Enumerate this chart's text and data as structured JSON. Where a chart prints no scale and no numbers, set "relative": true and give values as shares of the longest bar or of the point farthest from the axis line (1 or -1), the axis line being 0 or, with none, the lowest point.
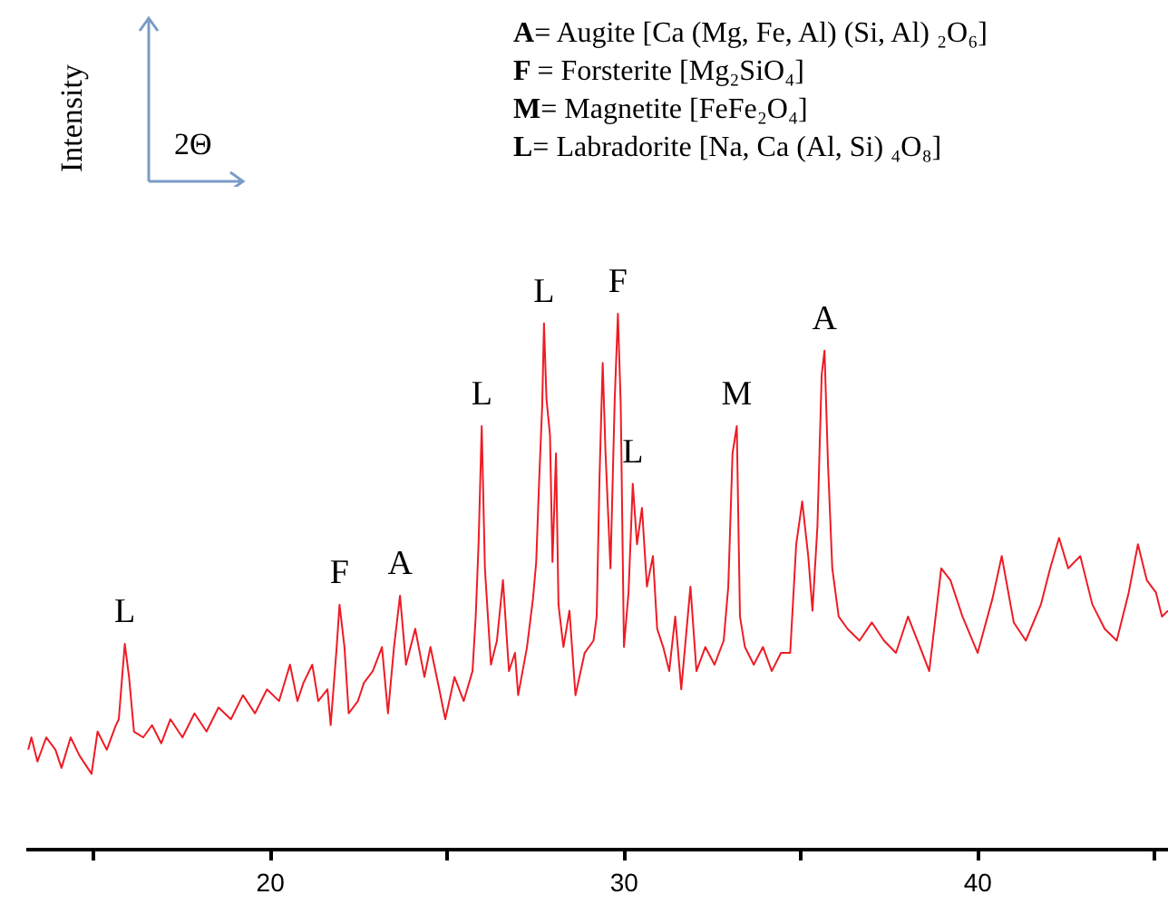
{
  "chart_data": {
    "type": "line",
    "relative": true,
    "xlabel": "2Θ",
    "ylabel": "Intensity",
    "annotations": [
      "A= Augite [Ca (Mg, Fe, Al) (Si, Al) ₂O₆]",
      "F = Forsterite [Mg₂SiO₄]",
      "M= Magnetite [FeFe₂O₄]",
      "L= Labradorite [Na, Ca (Al, Si) ₄O₈]",
      {
        "text": "L",
        "x": 15.91,
        "y": 0.383
      },
      {
        "text": "F",
        "x": 21.98,
        "y": 0.456
      },
      {
        "text": "A",
        "x": 23.69,
        "y": 0.473
      },
      {
        "text": "L",
        "x": 26.0,
        "y": 0.79
      },
      {
        "text": "L",
        "x": 27.76,
        "y": 0.982
      },
      {
        "text": "F",
        "x": 29.85,
        "y": 1
      },
      {
        "text": "L",
        "x": 30.27,
        "y": 0.682
      },
      {
        "text": "M",
        "x": 33.21,
        "y": 0.79
      },
      {
        "text": "A",
        "x": 35.69,
        "y": 0.931
      }
    ],
    "xlim": [
      13.1,
      45.4
    ],
    "xticks": [
      {
        "value": 15,
        "label": null
      },
      20,
      {
        "value": 25,
        "label": null
      },
      30,
      {
        "value": 35,
        "label": null
      },
      40,
      {
        "value": 45,
        "label": null
      }
    ],
    "x": [
      13.18,
      13.27,
      13.44,
      13.69,
      13.95,
      14.12,
      14.38,
      14.63,
      14.97,
      15.14,
      15.4,
      15.66,
      15.74,
      15.91,
      16.03,
      16.17,
      16.43,
      16.68,
      16.94,
      17.2,
      17.54,
      17.88,
      18.22,
      18.56,
      18.91,
      19.25,
      19.59,
      19.93,
      20.27,
      20.58,
      20.79,
      20.96,
      21.21,
      21.38,
      21.64,
      21.73,
      21.9,
      21.98,
      22.12,
      22.24,
      22.5,
      22.67,
      22.92,
      23.18,
      23.35,
      23.52,
      23.69,
      23.86,
      24.12,
      24.38,
      24.55,
      24.8,
      24.97,
      25.23,
      25.49,
      25.74,
      25.83,
      25.91,
      26.0,
      26.09,
      26.26,
      26.43,
      26.6,
      26.77,
      26.94,
      27.03,
      27.28,
      27.45,
      27.54,
      27.62,
      27.71,
      27.76,
      27.83,
      27.93,
      28.0,
      28.1,
      28.17,
      28.31,
      28.48,
      28.65,
      28.91,
      29.16,
      29.25,
      29.33,
      29.42,
      29.5,
      29.64,
      29.76,
      29.85,
      29.93,
      30.02,
      30.15,
      30.27,
      30.39,
      30.53,
      30.67,
      30.84,
      30.96,
      31.13,
      31.3,
      31.47,
      31.64,
      31.9,
      32.07,
      32.32,
      32.58,
      32.84,
      32.97,
      33.09,
      33.21,
      33.3,
      33.44,
      33.69,
      33.95,
      34.2,
      34.46,
      34.72,
      34.89,
      35.06,
      35.23,
      35.35,
      35.49,
      35.61,
      35.69,
      35.79,
      35.91,
      36.09,
      36.34,
      36.68,
      37.03,
      37.37,
      37.71,
      38.05,
      38.39,
      38.65,
      38.99,
      39.25,
      39.59,
      40.02,
      40.44,
      40.7,
      41.04,
      41.38,
      41.81,
      42.07,
      42.32,
      42.58,
      42.92,
      43.26,
      43.61,
      43.95,
      44.29,
      44.55,
      44.8,
      45.06,
      45.23,
      45.4
    ],
    "series": [
      {
        "color": "#ee1c25",
        "values": [
          0.185,
          0.208,
          0.163,
          0.208,
          0.185,
          0.151,
          0.208,
          0.174,
          0.14,
          0.219,
          0.185,
          0.231,
          0.242,
          0.383,
          0.321,
          0.219,
          0.208,
          0.231,
          0.197,
          0.242,
          0.208,
          0.253,
          0.219,
          0.264,
          0.242,
          0.287,
          0.253,
          0.298,
          0.276,
          0.344,
          0.276,
          0.31,
          0.344,
          0.276,
          0.298,
          0.231,
          0.377,
          0.456,
          0.377,
          0.253,
          0.276,
          0.31,
          0.332,
          0.377,
          0.253,
          0.377,
          0.473,
          0.344,
          0.411,
          0.321,
          0.377,
          0.298,
          0.242,
          0.321,
          0.276,
          0.332,
          0.434,
          0.569,
          0.79,
          0.524,
          0.344,
          0.389,
          0.502,
          0.332,
          0.366,
          0.287,
          0.377,
          0.468,
          0.536,
          0.682,
          0.829,
          0.982,
          0.841,
          0.773,
          0.536,
          0.739,
          0.456,
          0.377,
          0.445,
          0.287,
          0.366,
          0.389,
          0.434,
          0.694,
          0.908,
          0.739,
          0.524,
          0.841,
          1,
          0.829,
          0.377,
          0.479,
          0.682,
          0.569,
          0.637,
          0.49,
          0.547,
          0.411,
          0.377,
          0.332,
          0.434,
          0.298,
          0.49,
          0.332,
          0.377,
          0.344,
          0.389,
          0.49,
          0.739,
          0.79,
          0.434,
          0.377,
          0.344,
          0.377,
          0.332,
          0.366,
          0.366,
          0.569,
          0.649,
          0.547,
          0.445,
          0.603,
          0.886,
          0.931,
          0.716,
          0.524,
          0.434,
          0.411,
          0.389,
          0.423,
          0.389,
          0.366,
          0.434,
          0.377,
          0.332,
          0.524,
          0.502,
          0.434,
          0.366,
          0.468,
          0.547,
          0.423,
          0.389,
          0.457,
          0.524,
          0.581,
          0.524,
          0.547,
          0.457,
          0.411,
          0.389,
          0.479,
          0.569,
          0.502,
          0.479,
          0.434,
          0.445
        ]
      }
    ]
  }
}
